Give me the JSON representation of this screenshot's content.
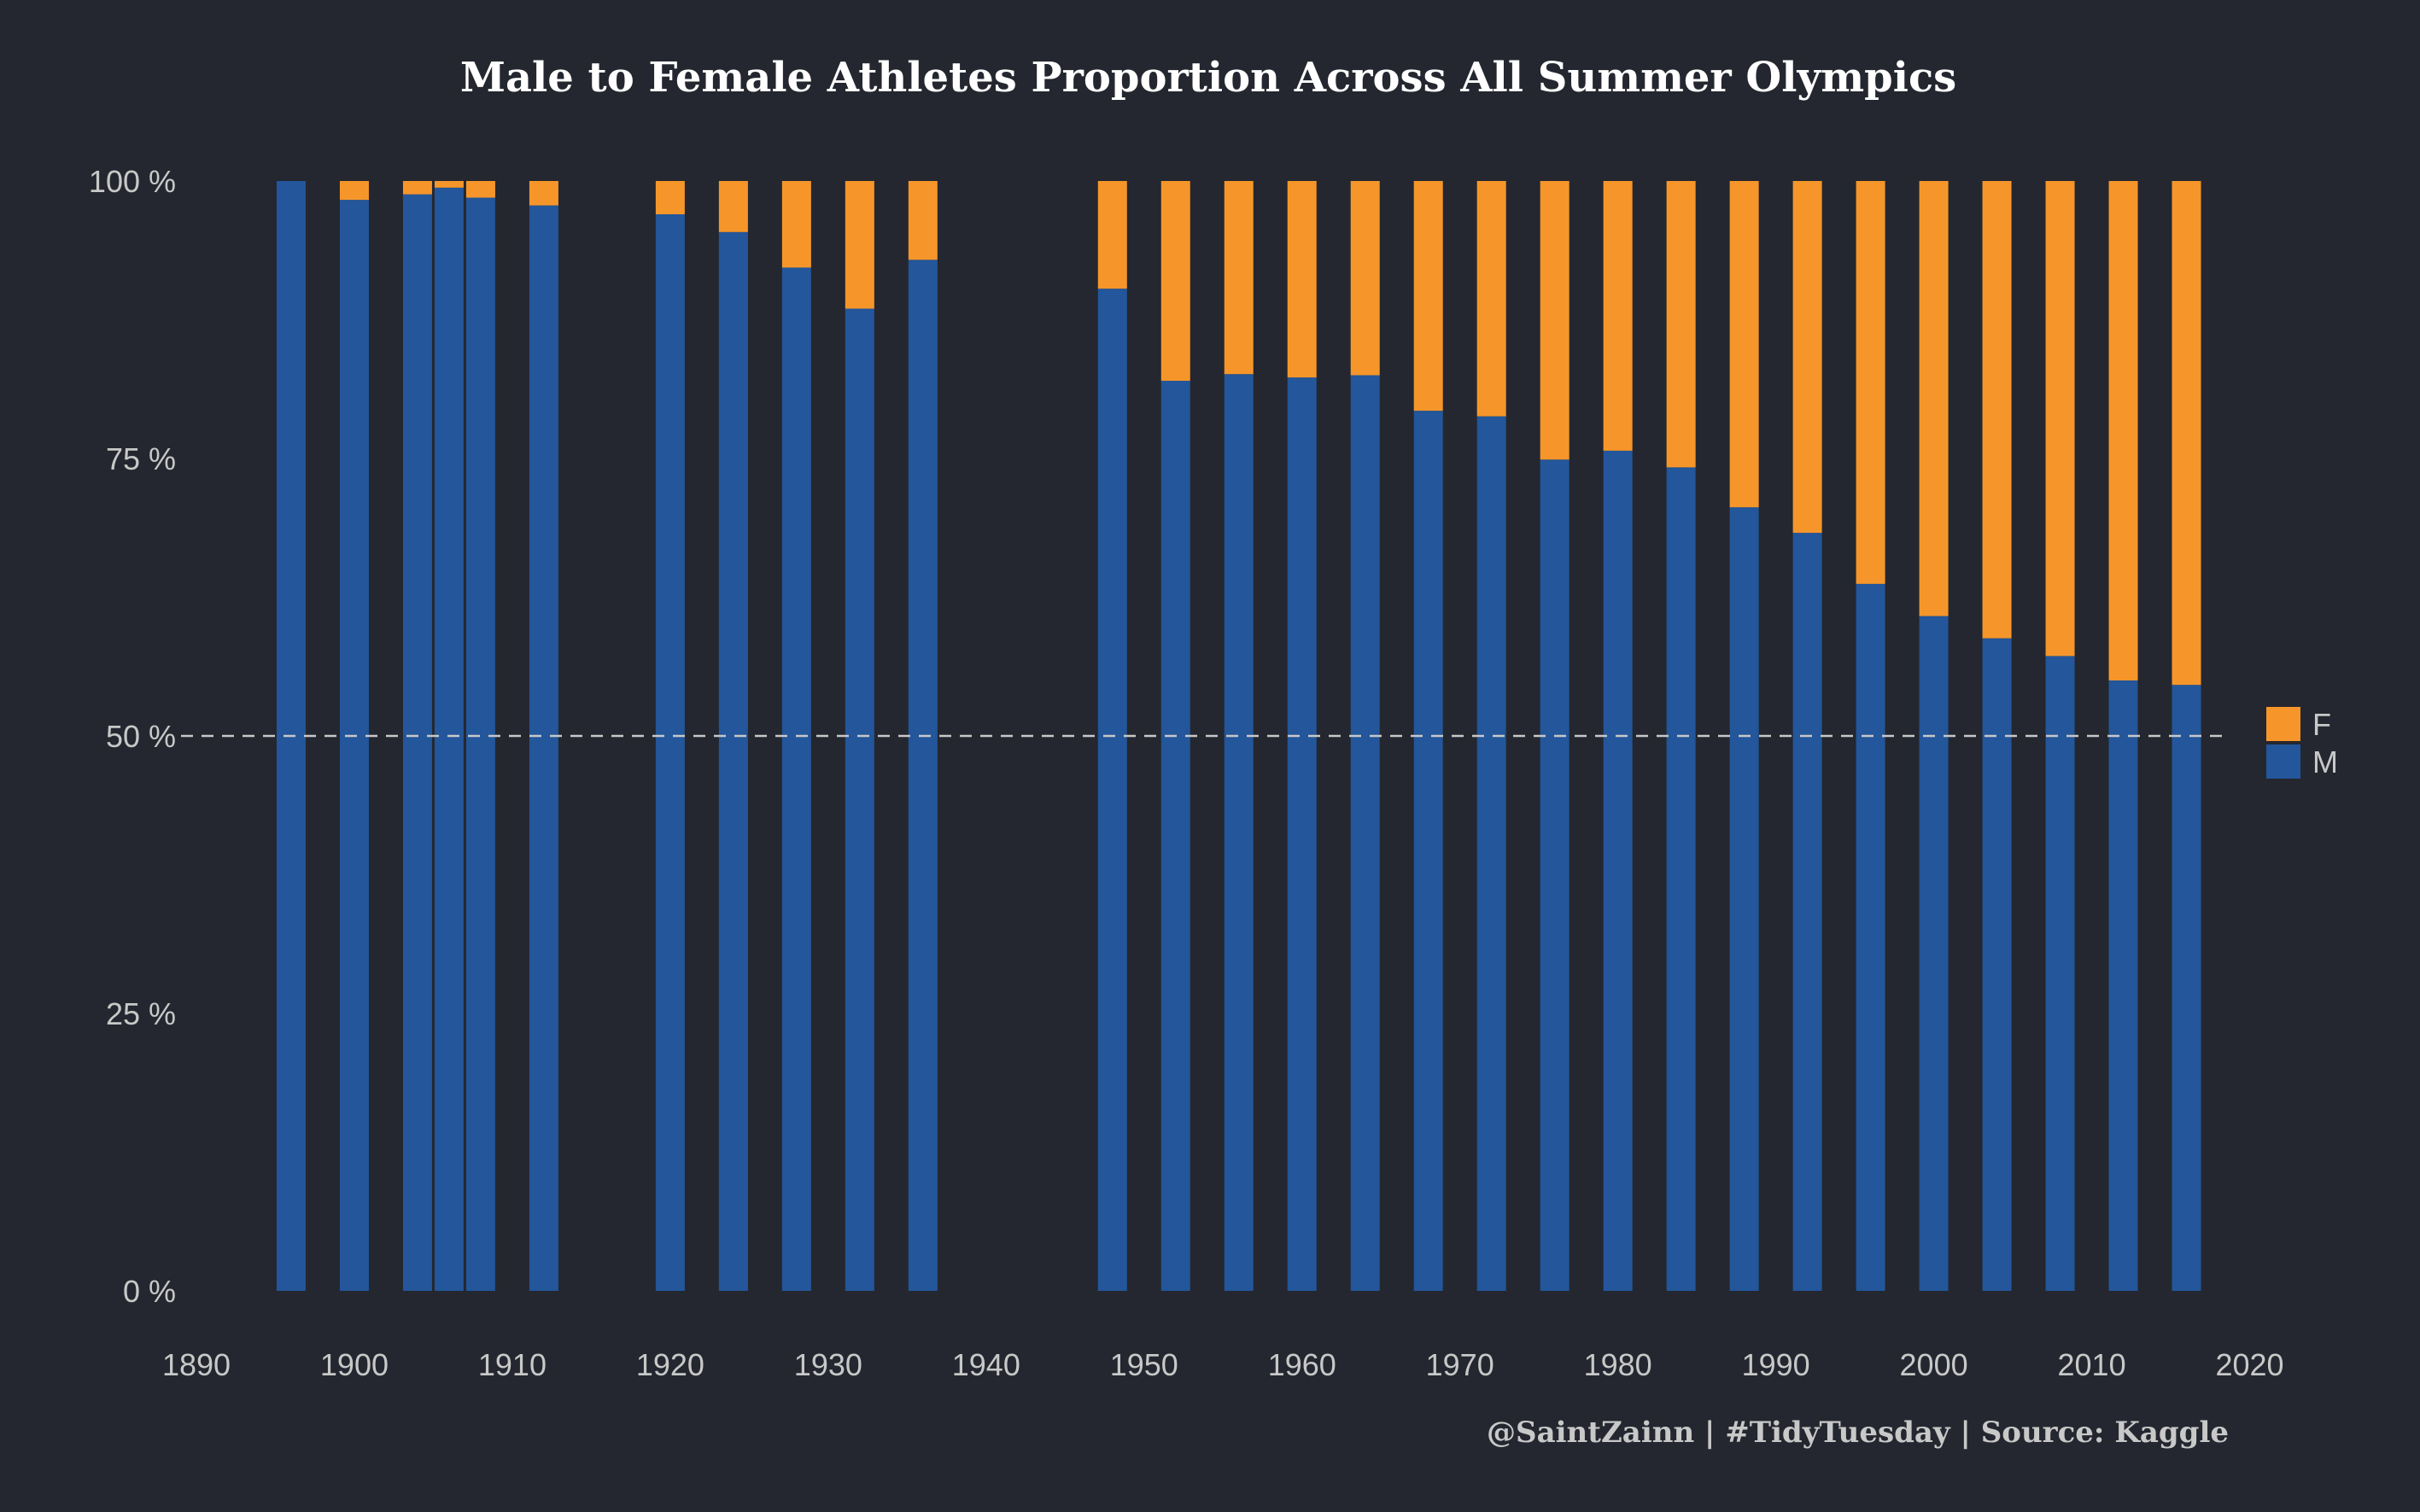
{
  "chart_data": {
    "type": "bar",
    "stacked": true,
    "title": "Male to Female Athletes Proportion Across All Summer Olympics",
    "xlabel": "",
    "ylabel": "",
    "caption": "@SaintZainn | #TidyTuesday | Source: Kaggle",
    "x": [
      1896,
      1900,
      1904,
      1906,
      1908,
      1912,
      1920,
      1924,
      1928,
      1932,
      1936,
      1948,
      1952,
      1956,
      1960,
      1964,
      1968,
      1972,
      1976,
      1980,
      1984,
      1988,
      1992,
      1996,
      2000,
      2004,
      2008,
      2012,
      2016
    ],
    "series": [
      {
        "name": "M",
        "color": "#23569a",
        "values": [
          100,
          98.3,
          98.8,
          99.4,
          98.5,
          97.8,
          97.0,
          95.4,
          92.2,
          88.5,
          92.9,
          90.3,
          82.0,
          82.6,
          82.3,
          82.5,
          79.3,
          78.8,
          74.9,
          75.7,
          74.2,
          70.6,
          68.3,
          63.7,
          60.8,
          58.8,
          57.2,
          55.0,
          54.6
        ]
      },
      {
        "name": "F",
        "color": "#f6962a",
        "values": [
          0,
          1.7,
          1.2,
          0.6,
          1.5,
          2.2,
          3.0,
          4.6,
          7.8,
          11.5,
          7.1,
          9.7,
          18.0,
          17.4,
          17.7,
          17.5,
          20.7,
          21.2,
          25.1,
          24.3,
          25.8,
          29.4,
          31.7,
          36.3,
          39.2,
          41.2,
          42.8,
          45.0,
          45.4
        ]
      }
    ],
    "xlim": [
      1890,
      2023
    ],
    "ylim": [
      0,
      100
    ],
    "xticks": [
      "1890",
      "1900",
      "1910",
      "1920",
      "1930",
      "1940",
      "1950",
      "1960",
      "1970",
      "1980",
      "1990",
      "2000",
      "2010",
      "2020"
    ],
    "yticks": [
      "0 %",
      "25 %",
      "50 %",
      "75 %",
      "100 %"
    ],
    "reference_line": {
      "y": 50,
      "style": "dashed"
    },
    "legend": {
      "position": "right",
      "order": [
        "F",
        "M"
      ]
    },
    "grid": false
  },
  "colors": {
    "background": "#24272f",
    "male": "#23569a",
    "female": "#f6962a",
    "text": "#c8c8c8",
    "title": "#ffffff",
    "refline": "#c8c8c8"
  }
}
